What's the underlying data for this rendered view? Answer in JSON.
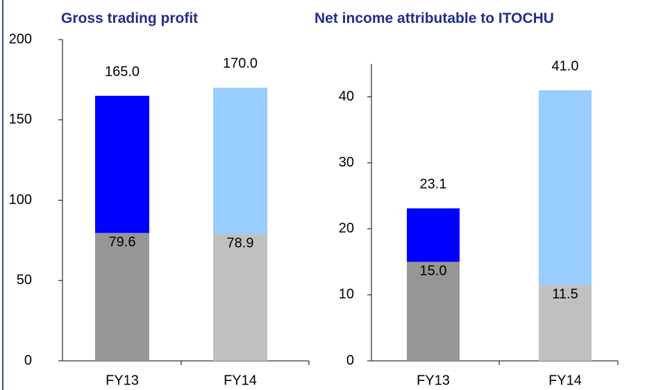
{
  "chart_data": [
    {
      "type": "stacked_bar",
      "title": "Gross trading profit",
      "categories": [
        "FY13",
        "FY14"
      ],
      "series": [
        {
          "colors": [
            "#969696",
            "#c0c0c0"
          ],
          "values": [
            79.6,
            78.9
          ]
        },
        {
          "colors": [
            "#0000ff",
            "#99ccff"
          ],
          "values": [
            85.4,
            91.1
          ]
        }
      ],
      "total_labels": [
        "165.0",
        "170.0"
      ],
      "ylim": [
        0,
        200
      ],
      "yticks": [
        0,
        50,
        100,
        150,
        200
      ]
    },
    {
      "type": "stacked_bar",
      "title": "Net income attributable to ITOCHU",
      "categories": [
        "FY13",
        "FY14"
      ],
      "series": [
        {
          "colors": [
            "#969696",
            "#c0c0c0"
          ],
          "values": [
            15.0,
            11.5
          ],
          "value_labels": [
            "15.0",
            "11.5"
          ]
        },
        {
          "colors": [
            "#0000ff",
            "#99ccff"
          ],
          "values": [
            8.1,
            29.5
          ]
        }
      ],
      "total_labels": [
        "23.1",
        "41.0"
      ],
      "ylim": [
        0,
        45
      ],
      "yticks": [
        0,
        10,
        20,
        30,
        40
      ]
    }
  ]
}
